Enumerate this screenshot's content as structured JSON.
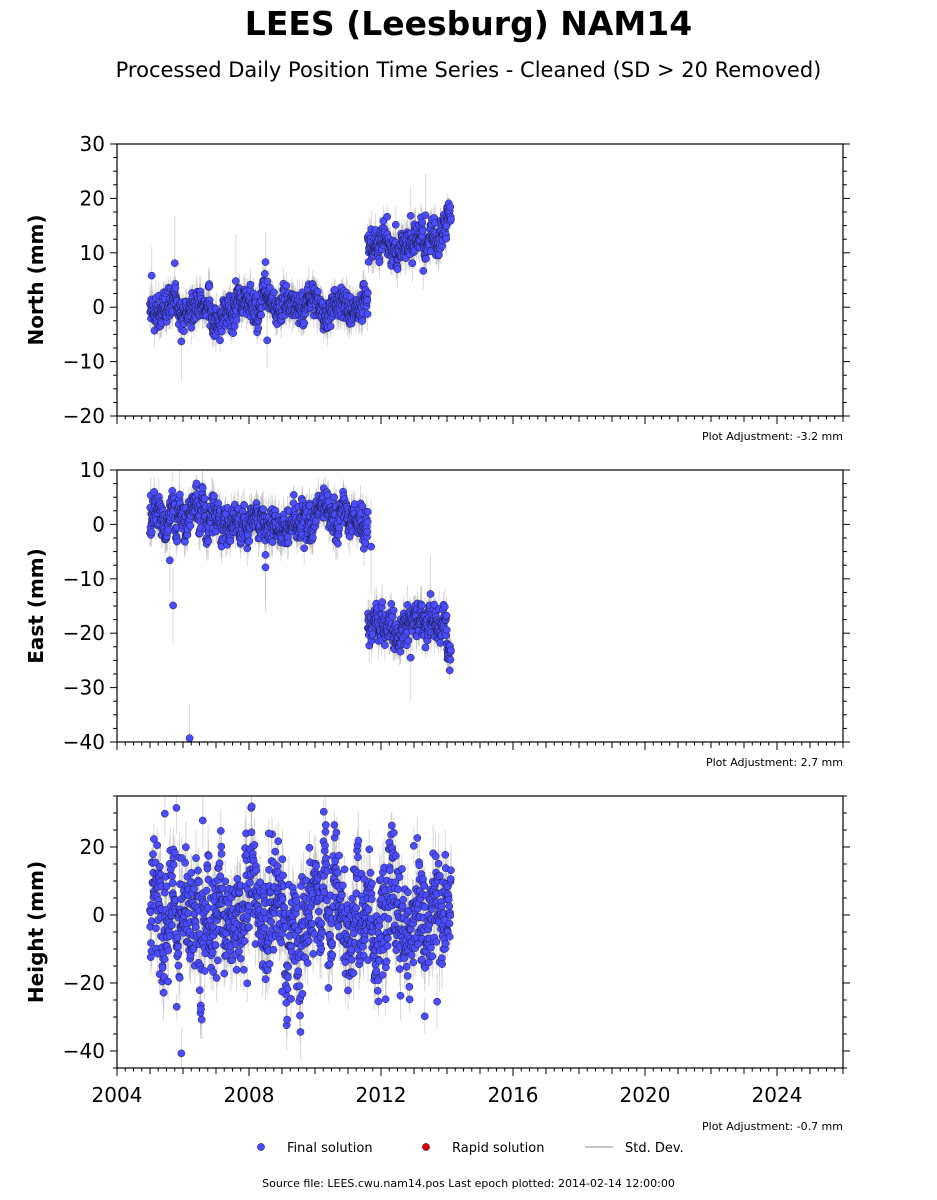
{
  "title": "LEES (Leesburg) NAM14",
  "subtitle": "Processed Daily Position Time Series - Cleaned (SD > 20 Removed)",
  "footer": "Source file: LEES.cwu.nam14.pos  Last epoch plotted: 2014-02-14 12:00:00",
  "colors": {
    "final": "#4b4bff",
    "rapid": "#e00000",
    "sd": "#b4b4b4"
  },
  "legend": {
    "placement": "bottom-center",
    "items": [
      {
        "label": "Final solution",
        "marker": "circle",
        "color": "#4b4bff"
      },
      {
        "label": "Rapid solution",
        "marker": "circle",
        "color": "#e00000"
      },
      {
        "label": "Std. Dev.",
        "marker": "line",
        "color": "#b4b4b4"
      }
    ]
  },
  "chart_data": [
    {
      "type": "scatter",
      "ylabel": "North (mm)",
      "ylim": [
        -20,
        30
      ],
      "yticks": [
        -20,
        -10,
        0,
        10,
        20,
        30
      ],
      "xlim": [
        2004,
        2026
      ],
      "xticks": [
        2004,
        2008,
        2012,
        2016,
        2020,
        2024
      ],
      "adjustment": "Plot Adjustment: -3.2 mm",
      "segments": [
        {
          "start": 2005.0,
          "end": 2011.6,
          "mean": 0.0,
          "spread": 1.6,
          "sd": 2.2
        },
        {
          "start": 2011.6,
          "end": 2014.0,
          "mean": 12.0,
          "spread": 1.6,
          "sd": 2.4
        },
        {
          "start": 2014.0,
          "end": 2014.12,
          "mean": 18.5,
          "spread": 1.0,
          "sd": 1.8
        }
      ],
      "outliers": [
        [
          2005.05,
          5.8
        ],
        [
          2005.75,
          8.1
        ],
        [
          2008.5,
          8.3
        ],
        [
          2008.55,
          -6.1
        ],
        [
          2005.95,
          -6.3
        ],
        [
          2007.6,
          4.8
        ],
        [
          2012.9,
          16.8
        ],
        [
          2013.35,
          16.9
        ]
      ]
    },
    {
      "type": "scatter",
      "ylabel": "East (mm)",
      "ylim": [
        -40,
        10
      ],
      "yticks": [
        -40,
        -30,
        -20,
        -10,
        0,
        10
      ],
      "xlim": [
        2004,
        2026
      ],
      "xticks": [
        2004,
        2008,
        2012,
        2016,
        2020,
        2024
      ],
      "adjustment": "Plot Adjustment: 2.7 mm",
      "segments": [
        {
          "start": 2005.0,
          "end": 2011.6,
          "mean": 1.0,
          "spread": 1.8,
          "sd": 2.4
        },
        {
          "start": 2011.6,
          "end": 2014.0,
          "mean": -19.2,
          "spread": 1.6,
          "sd": 2.4
        },
        {
          "start": 2014.0,
          "end": 2014.12,
          "mean": -23.5,
          "spread": 1.4,
          "sd": 2.0
        }
      ],
      "outliers": [
        [
          2005.7,
          -14.9
        ],
        [
          2006.2,
          -39.3
        ],
        [
          2005.6,
          -6.6
        ],
        [
          2008.5,
          -5.6
        ],
        [
          2008.5,
          -7.9
        ],
        [
          2005.9,
          5.5
        ],
        [
          2013.5,
          -12.8
        ],
        [
          2012.9,
          -24.5
        ],
        [
          2011.7,
          -4.1
        ]
      ]
    },
    {
      "type": "scatter",
      "ylabel": "Height (mm)",
      "ylim": [
        -45,
        35
      ],
      "yticks": [
        -40,
        -20,
        0,
        20
      ],
      "xlim": [
        2004,
        2026
      ],
      "xticks": [
        2004,
        2008,
        2012,
        2016,
        2020,
        2024
      ],
      "xticklabels": [
        "2004",
        "2008",
        "2012",
        "2016",
        "2020",
        "2024"
      ],
      "adjustment": "Plot Adjustment: -0.7 mm",
      "segments": [
        {
          "start": 2005.0,
          "end": 2014.12,
          "mean": 0.0,
          "spread": 8.5,
          "sd": 6.0
        }
      ],
      "outliers": [
        [
          2005.95,
          -40.7
        ],
        [
          2005.45,
          29.8
        ],
        [
          2005.8,
          31.5
        ],
        [
          2006.6,
          27.8
        ],
        [
          2008.6,
          24.0
        ],
        [
          2013.7,
          -25.5
        ],
        [
          2009.0,
          -22.5
        ],
        [
          2011.0,
          -22.2
        ],
        [
          2011.9,
          -22.3
        ],
        [
          2005.9,
          -18.5
        ]
      ]
    }
  ]
}
